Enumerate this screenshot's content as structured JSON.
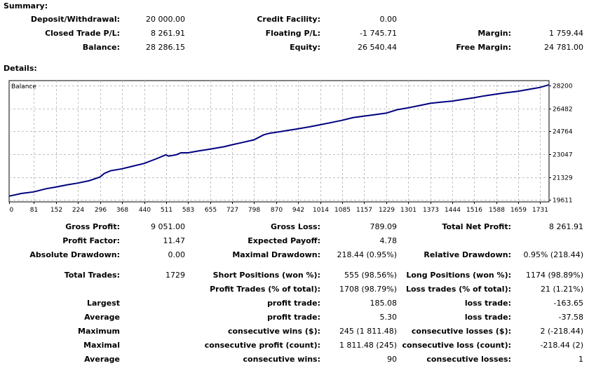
{
  "summary": {
    "header": "Summary:",
    "rows": [
      [
        {
          "label": "Deposit/Withdrawal:",
          "value": "20 000.00"
        },
        {
          "label": "Credit Facility:",
          "value": "0.00"
        },
        {
          "label": "",
          "value": ""
        }
      ],
      [
        {
          "label": "Closed Trade P/L:",
          "value": "8 261.91"
        },
        {
          "label": "Floating P/L:",
          "value": "-1 745.71"
        },
        {
          "label": "Margin:",
          "value": "1 759.44"
        }
      ],
      [
        {
          "label": "Balance:",
          "value": "28 286.15"
        },
        {
          "label": "Equity:",
          "value": "26 540.44"
        },
        {
          "label": "Free Margin:",
          "value": "24 781.00"
        }
      ]
    ]
  },
  "details": {
    "header": "Details:",
    "rows": [
      [
        "Gross Profit:",
        "9 051.00",
        "Gross Loss:",
        "789.09",
        "Total Net Profit:",
        "8 261.91"
      ],
      [
        "Profit Factor:",
        "11.47",
        "Expected Payoff:",
        "4.78",
        "",
        ""
      ],
      [
        "Absolute Drawdown:",
        "0.00",
        "Maximal Drawdown:",
        "218.44 (0.95%)",
        "Relative Drawdown:",
        "0.95% (218.44)"
      ],
      [
        "Total Trades:",
        "1729",
        "Short Positions (won %):",
        "555 (98.56%)",
        "Long Positions (won %):",
        "1174 (98.89%)"
      ],
      [
        "",
        "",
        "Profit Trades (% of total):",
        "1708 (98.79%)",
        "Loss trades (% of total):",
        "21 (1.21%)"
      ],
      [
        "Largest",
        "",
        "profit trade:",
        "185.08",
        "loss trade:",
        "-163.65"
      ],
      [
        "Average",
        "",
        "profit trade:",
        "5.30",
        "loss trade:",
        "-37.58"
      ],
      [
        "Maximum",
        "",
        "consecutive wins ($):",
        "245 (1 811.48)",
        "consecutive losses ($):",
        "2 (-218.44)"
      ],
      [
        "Maximal",
        "",
        "consecutive profit (count):",
        "1 811.48 (245)",
        "consecutive loss (count):",
        "-218.44 (2)"
      ],
      [
        "Average",
        "",
        "consecutive wins:",
        "90",
        "consecutive losses:",
        "1"
      ]
    ]
  },
  "chart_data": {
    "type": "line",
    "title": "Balance",
    "x_ticks": [
      0,
      81,
      152,
      224,
      296,
      368,
      440,
      511,
      583,
      655,
      727,
      798,
      870,
      942,
      1014,
      1085,
      1157,
      1229,
      1301,
      1373,
      1444,
      1516,
      1588,
      1659,
      1731
    ],
    "y_ticks": [
      19611,
      21329,
      23047,
      24764,
      26482,
      28200
    ],
    "xlim": [
      0,
      1760
    ],
    "ylim": [
      19470,
      28560
    ],
    "grid": true,
    "series": [
      {
        "name": "Balance",
        "color": "#000080",
        "x": [
          0,
          40,
          81,
          120,
          152,
          190,
          224,
          260,
          296,
          310,
          330,
          368,
          400,
          440,
          480,
          511,
          520,
          545,
          560,
          583,
          620,
          655,
          700,
          727,
          760,
          798,
          830,
          850,
          870,
          900,
          942,
          980,
          1014,
          1050,
          1085,
          1120,
          1157,
          1190,
          1229,
          1265,
          1301,
          1340,
          1373,
          1410,
          1444,
          1480,
          1516,
          1550,
          1588,
          1620,
          1659,
          1700,
          1731,
          1760
        ],
        "y": [
          19900,
          20100,
          20220,
          20450,
          20580,
          20750,
          20880,
          21050,
          21330,
          21600,
          21800,
          21950,
          22130,
          22350,
          22700,
          23000,
          22900,
          23000,
          23150,
          23150,
          23300,
          23420,
          23600,
          23750,
          23920,
          24120,
          24500,
          24620,
          24680,
          24800,
          24950,
          25100,
          25250,
          25420,
          25580,
          25780,
          25900,
          26000,
          26120,
          26380,
          26520,
          26700,
          26860,
          26950,
          27020,
          27150,
          27280,
          27420,
          27550,
          27650,
          27760,
          27930,
          28050,
          28250
        ]
      }
    ]
  }
}
